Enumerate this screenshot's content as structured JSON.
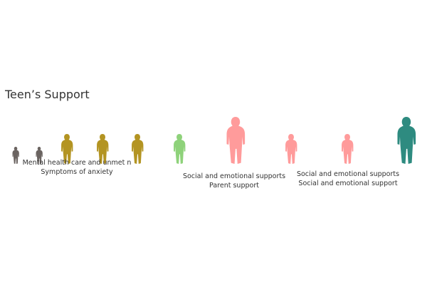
{
  "chart_data": {
    "type": "pictogram",
    "title": "Teen’s Support",
    "series": [
      {
        "name": "",
        "color": "#6b6461",
        "values": [
          1,
          1
        ]
      },
      {
        "name": "",
        "color": "#b39422",
        "values": [
          2,
          2,
          2
        ]
      },
      {
        "name": "",
        "color": "#8ed27a",
        "values": [
          2
        ]
      },
      {
        "name": "",
        "color": "#ff9b9b",
        "values": [
          3,
          2,
          2
        ]
      },
      {
        "name": "",
        "color": "#2e8b80",
        "values": [
          3
        ]
      }
    ],
    "figures": [
      {
        "color": "#6b6461",
        "size": 1
      },
      {
        "color": "#6b6461",
        "size": 1
      },
      {
        "color": "#b39422",
        "size": 2
      },
      {
        "color": "#b39422",
        "size": 2
      },
      {
        "color": "#b39422",
        "size": 2
      },
      {
        "color": "#8ed27a",
        "size": 2
      },
      {
        "color": "#ff9b9b",
        "size": 3
      },
      {
        "color": "#ff9b9b",
        "size": 2
      },
      {
        "color": "#ff9b9b",
        "size": 2
      },
      {
        "color": "#2e8b80",
        "size": 3
      }
    ],
    "captions": [
      {
        "lines": [
          "Mental health care and unmet n",
          "Symptoms of anxiety"
        ]
      },
      {
        "lines": [
          "Social and emotional supports",
          "Parent support"
        ]
      },
      {
        "lines": [
          "Social and emotional supports",
          "Social and emotional support"
        ]
      }
    ]
  }
}
